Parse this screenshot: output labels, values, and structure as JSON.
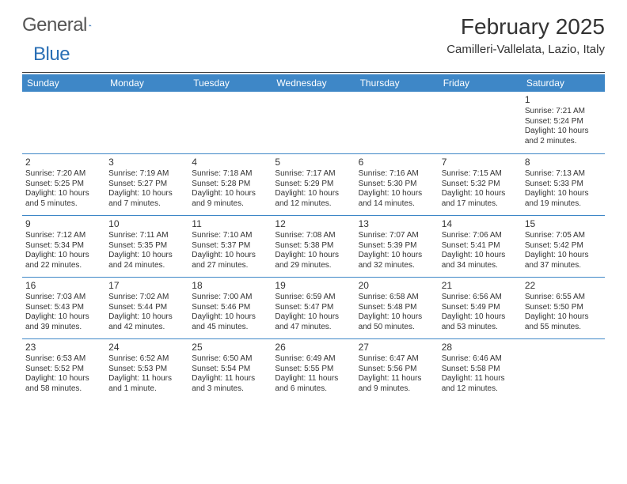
{
  "logo": {
    "word1": "General",
    "word2": "Blue"
  },
  "title": "February 2025",
  "location": "Camilleri-Vallelata, Lazio, Italy",
  "colors": {
    "header_bg": "#3e87c7",
    "header_text": "#ffffff",
    "logo_gray": "#555555",
    "logo_blue": "#2a6fb5",
    "text": "#333333",
    "cell_border": "#3e87c7",
    "background": "#ffffff"
  },
  "dayNames": [
    "Sunday",
    "Monday",
    "Tuesday",
    "Wednesday",
    "Thursday",
    "Friday",
    "Saturday"
  ],
  "weeks": [
    [
      null,
      null,
      null,
      null,
      null,
      null,
      {
        "n": "1",
        "sr": "7:21 AM",
        "ss": "5:24 PM",
        "dl": "10 hours and 2 minutes."
      }
    ],
    [
      {
        "n": "2",
        "sr": "7:20 AM",
        "ss": "5:25 PM",
        "dl": "10 hours and 5 minutes."
      },
      {
        "n": "3",
        "sr": "7:19 AM",
        "ss": "5:27 PM",
        "dl": "10 hours and 7 minutes."
      },
      {
        "n": "4",
        "sr": "7:18 AM",
        "ss": "5:28 PM",
        "dl": "10 hours and 9 minutes."
      },
      {
        "n": "5",
        "sr": "7:17 AM",
        "ss": "5:29 PM",
        "dl": "10 hours and 12 minutes."
      },
      {
        "n": "6",
        "sr": "7:16 AM",
        "ss": "5:30 PM",
        "dl": "10 hours and 14 minutes."
      },
      {
        "n": "7",
        "sr": "7:15 AM",
        "ss": "5:32 PM",
        "dl": "10 hours and 17 minutes."
      },
      {
        "n": "8",
        "sr": "7:13 AM",
        "ss": "5:33 PM",
        "dl": "10 hours and 19 minutes."
      }
    ],
    [
      {
        "n": "9",
        "sr": "7:12 AM",
        "ss": "5:34 PM",
        "dl": "10 hours and 22 minutes."
      },
      {
        "n": "10",
        "sr": "7:11 AM",
        "ss": "5:35 PM",
        "dl": "10 hours and 24 minutes."
      },
      {
        "n": "11",
        "sr": "7:10 AM",
        "ss": "5:37 PM",
        "dl": "10 hours and 27 minutes."
      },
      {
        "n": "12",
        "sr": "7:08 AM",
        "ss": "5:38 PM",
        "dl": "10 hours and 29 minutes."
      },
      {
        "n": "13",
        "sr": "7:07 AM",
        "ss": "5:39 PM",
        "dl": "10 hours and 32 minutes."
      },
      {
        "n": "14",
        "sr": "7:06 AM",
        "ss": "5:41 PM",
        "dl": "10 hours and 34 minutes."
      },
      {
        "n": "15",
        "sr": "7:05 AM",
        "ss": "5:42 PM",
        "dl": "10 hours and 37 minutes."
      }
    ],
    [
      {
        "n": "16",
        "sr": "7:03 AM",
        "ss": "5:43 PM",
        "dl": "10 hours and 39 minutes."
      },
      {
        "n": "17",
        "sr": "7:02 AM",
        "ss": "5:44 PM",
        "dl": "10 hours and 42 minutes."
      },
      {
        "n": "18",
        "sr": "7:00 AM",
        "ss": "5:46 PM",
        "dl": "10 hours and 45 minutes."
      },
      {
        "n": "19",
        "sr": "6:59 AM",
        "ss": "5:47 PM",
        "dl": "10 hours and 47 minutes."
      },
      {
        "n": "20",
        "sr": "6:58 AM",
        "ss": "5:48 PM",
        "dl": "10 hours and 50 minutes."
      },
      {
        "n": "21",
        "sr": "6:56 AM",
        "ss": "5:49 PM",
        "dl": "10 hours and 53 minutes."
      },
      {
        "n": "22",
        "sr": "6:55 AM",
        "ss": "5:50 PM",
        "dl": "10 hours and 55 minutes."
      }
    ],
    [
      {
        "n": "23",
        "sr": "6:53 AM",
        "ss": "5:52 PM",
        "dl": "10 hours and 58 minutes."
      },
      {
        "n": "24",
        "sr": "6:52 AM",
        "ss": "5:53 PM",
        "dl": "11 hours and 1 minute."
      },
      {
        "n": "25",
        "sr": "6:50 AM",
        "ss": "5:54 PM",
        "dl": "11 hours and 3 minutes."
      },
      {
        "n": "26",
        "sr": "6:49 AM",
        "ss": "5:55 PM",
        "dl": "11 hours and 6 minutes."
      },
      {
        "n": "27",
        "sr": "6:47 AM",
        "ss": "5:56 PM",
        "dl": "11 hours and 9 minutes."
      },
      {
        "n": "28",
        "sr": "6:46 AM",
        "ss": "5:58 PM",
        "dl": "11 hours and 12 minutes."
      },
      null
    ]
  ],
  "labels": {
    "sunrise": "Sunrise: ",
    "sunset": "Sunset: ",
    "daylight": "Daylight: "
  }
}
